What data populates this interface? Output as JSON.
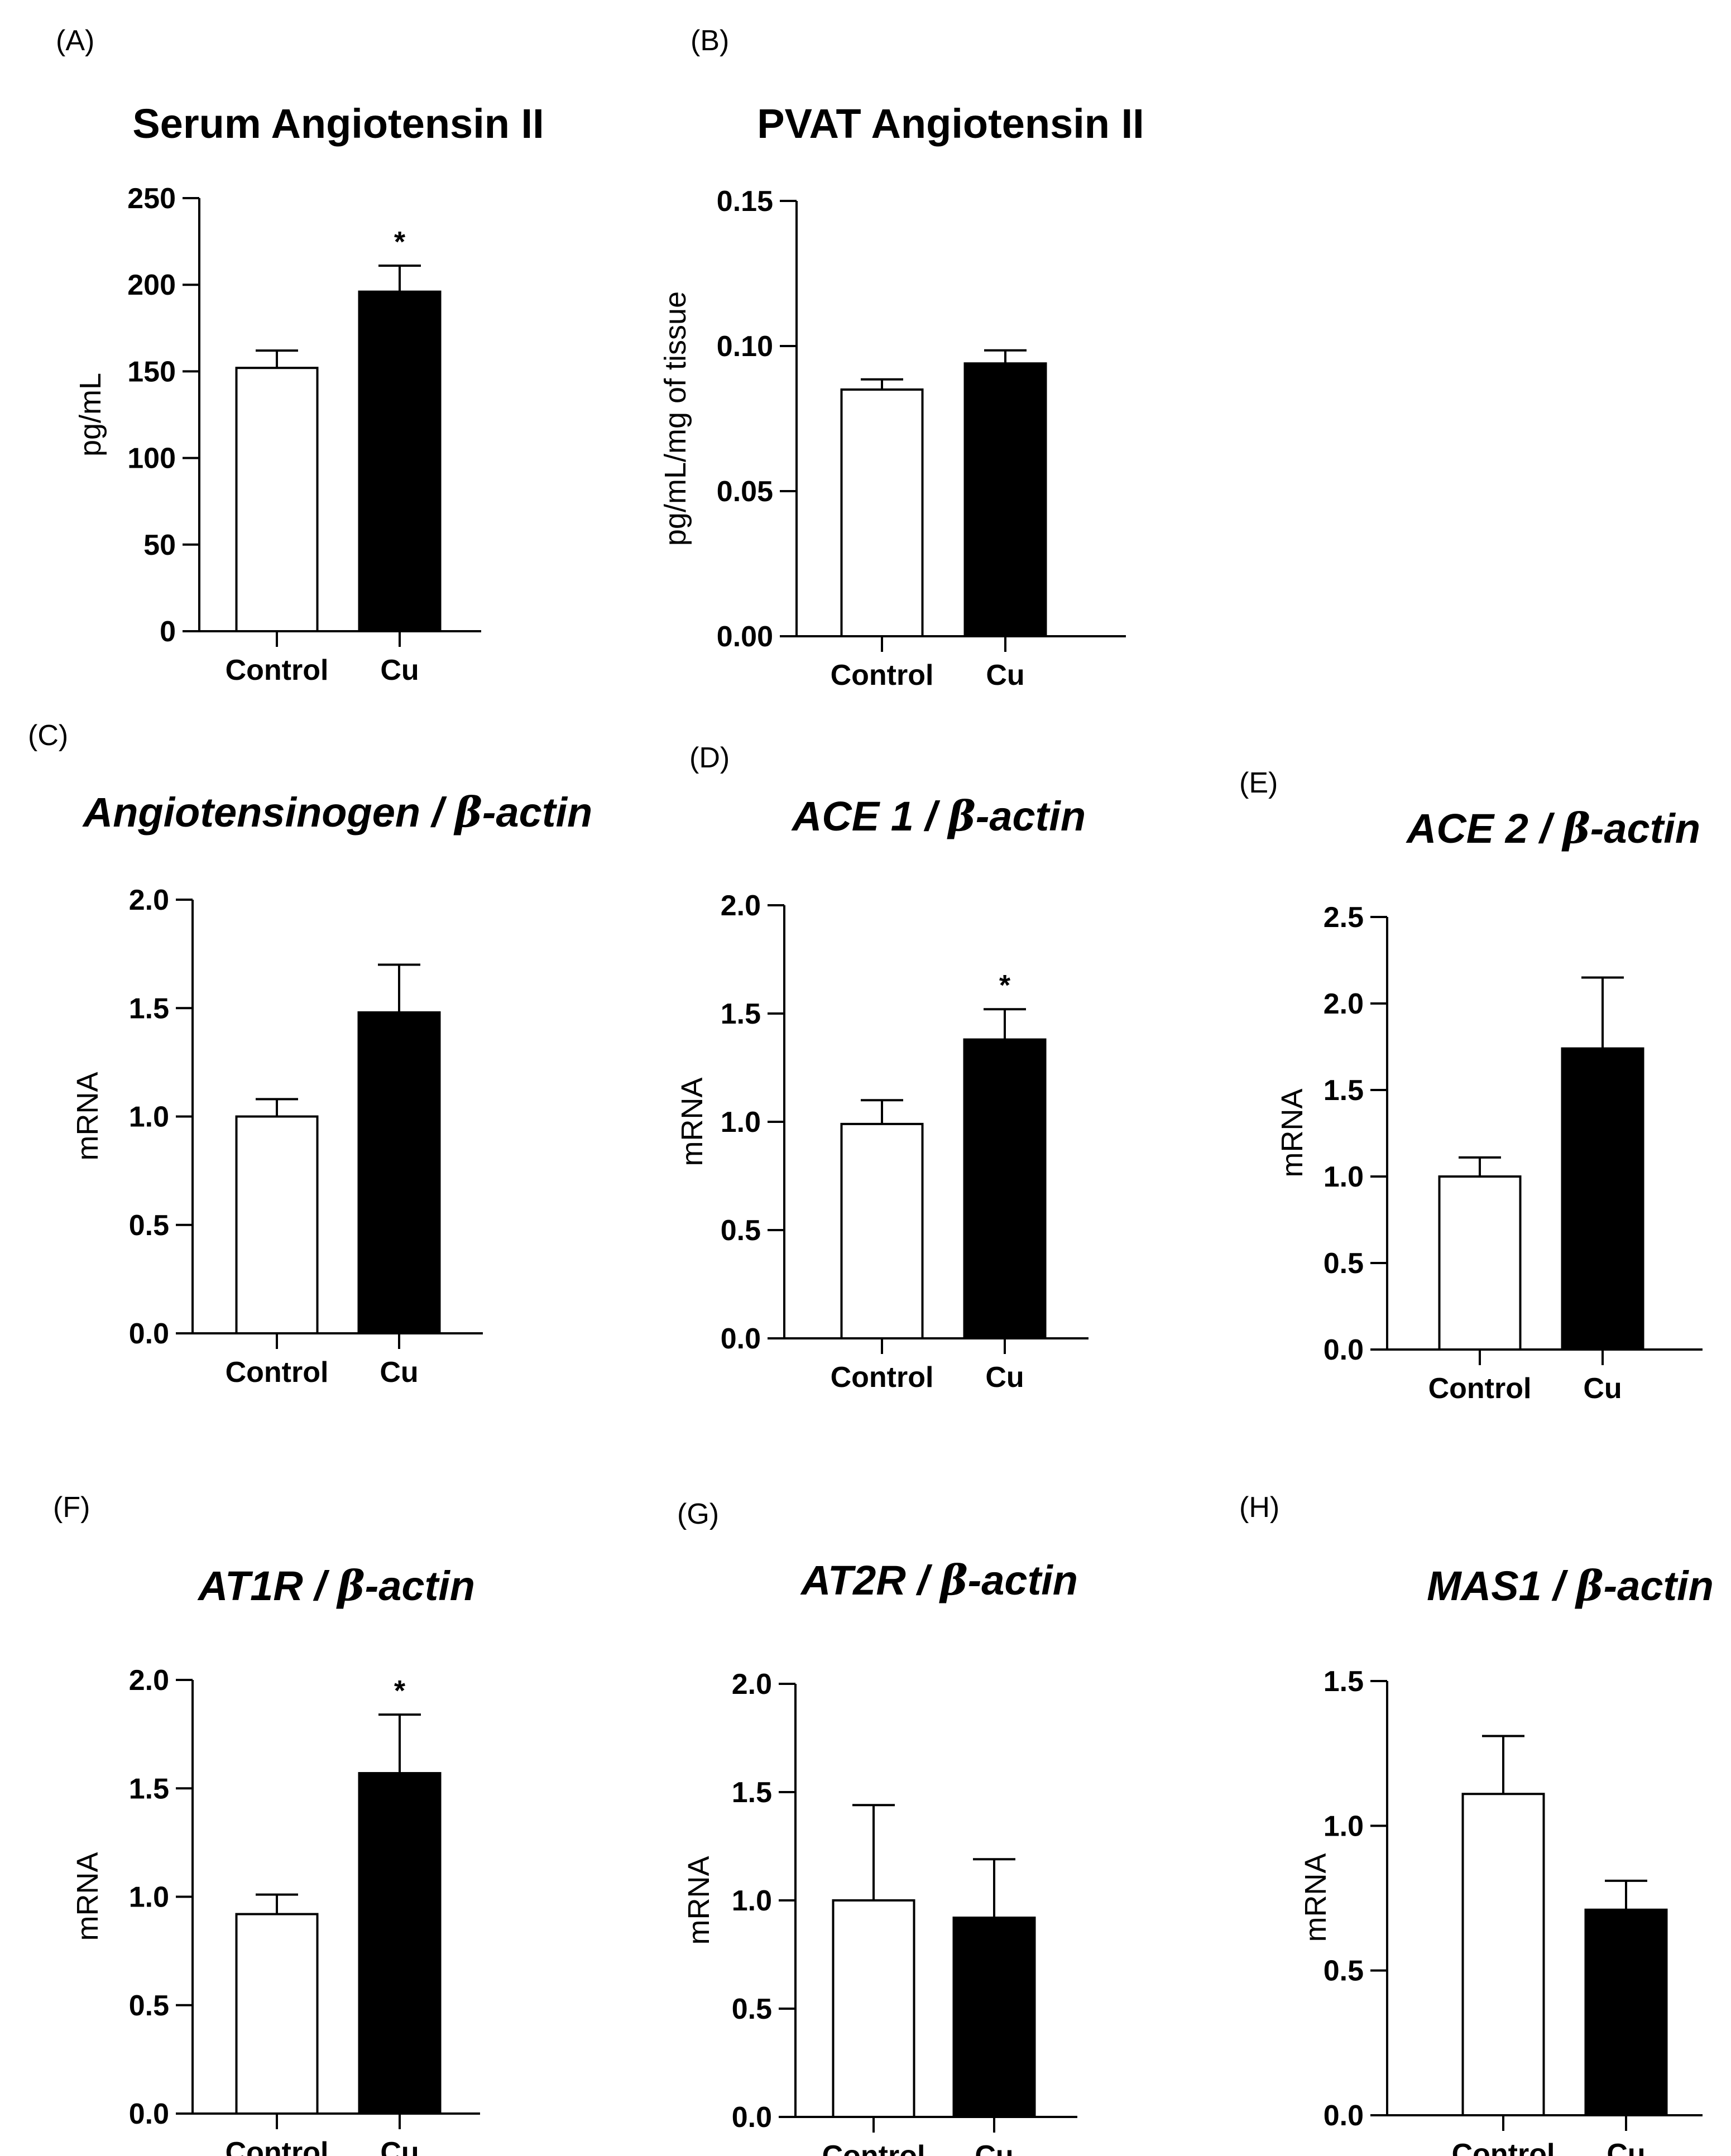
{
  "figure": {
    "background": "#ffffff",
    "colors": {
      "control_fill": "#ffffff",
      "cu_fill": "#000000",
      "stroke": "#000000"
    }
  },
  "chart_data": [
    {
      "id": "A",
      "panel_label": "(A)",
      "type": "bar",
      "title": "Serum Angiotensin II",
      "title_italic": false,
      "ylabel": "pg/mL",
      "ylim": [
        0,
        250
      ],
      "yticks": [
        0,
        50,
        100,
        150,
        200,
        250
      ],
      "ytick_labels": [
        "0",
        "50",
        "100",
        "150",
        "200",
        "250"
      ],
      "categories": [
        "Control",
        "Cu"
      ],
      "values": [
        152,
        196
      ],
      "errors": [
        10,
        15
      ],
      "significance": [
        "",
        "*"
      ]
    },
    {
      "id": "B",
      "panel_label": "(B)",
      "type": "bar",
      "title": "PVAT Angiotensin II",
      "title_italic": false,
      "ylabel": "pg/mL/mg of tissue",
      "ylim": [
        0,
        0.15
      ],
      "yticks": [
        0,
        0.05,
        0.1,
        0.15
      ],
      "ytick_labels": [
        "0.00",
        "0.05",
        "0.10",
        "0.15"
      ],
      "categories": [
        "Control",
        "Cu"
      ],
      "values": [
        0.085,
        0.094
      ],
      "errors": [
        0.0035,
        0.0045
      ],
      "significance": [
        "",
        ""
      ]
    },
    {
      "id": "C",
      "panel_label": "(C)",
      "type": "bar",
      "title": "Angiotensinogen / β-actin",
      "title_italic": true,
      "ylabel": "mRNA",
      "ylim": [
        0,
        2.0
      ],
      "yticks": [
        0,
        0.5,
        1.0,
        1.5,
        2.0
      ],
      "ytick_labels": [
        "0.0",
        "0.5",
        "1.0",
        "1.5",
        "2.0"
      ],
      "categories": [
        "Control",
        "Cu"
      ],
      "values": [
        1.0,
        1.48
      ],
      "errors": [
        0.08,
        0.22
      ],
      "significance": [
        "",
        ""
      ]
    },
    {
      "id": "D",
      "panel_label": "(D)",
      "type": "bar",
      "title": "ACE 1 / β-actin",
      "title_italic": true,
      "ylabel": "mRNA",
      "ylim": [
        0,
        2.0
      ],
      "yticks": [
        0,
        0.5,
        1.0,
        1.5,
        2.0
      ],
      "ytick_labels": [
        "0.0",
        "0.5",
        "1.0",
        "1.5",
        "2.0"
      ],
      "categories": [
        "Control",
        "Cu"
      ],
      "values": [
        0.99,
        1.38
      ],
      "errors": [
        0.11,
        0.14
      ],
      "significance": [
        "",
        "*"
      ]
    },
    {
      "id": "E",
      "panel_label": "(E)",
      "type": "bar",
      "title": "ACE 2 / β-actin",
      "title_italic": true,
      "ylabel": "mRNA",
      "ylim": [
        0,
        2.5
      ],
      "yticks": [
        0,
        0.5,
        1.0,
        1.5,
        2.0,
        2.5
      ],
      "ytick_labels": [
        "0.0",
        "0.5",
        "1.0",
        "1.5",
        "2.0",
        "2.5"
      ],
      "categories": [
        "Control",
        "Cu"
      ],
      "values": [
        1.0,
        1.74
      ],
      "errors": [
        0.11,
        0.41
      ],
      "significance": [
        "",
        ""
      ]
    },
    {
      "id": "F",
      "panel_label": "(F)",
      "type": "bar",
      "title": "AT1R / β-actin",
      "title_italic": true,
      "ylabel": "mRNA",
      "ylim": [
        0,
        2.0
      ],
      "yticks": [
        0,
        0.5,
        1.0,
        1.5,
        2.0
      ],
      "ytick_labels": [
        "0.0",
        "0.5",
        "1.0",
        "1.5",
        "2.0"
      ],
      "categories": [
        "Control",
        "Cu"
      ],
      "values": [
        0.92,
        1.57
      ],
      "errors": [
        0.09,
        0.27
      ],
      "significance": [
        "",
        "*"
      ]
    },
    {
      "id": "G",
      "panel_label": "(G)",
      "type": "bar",
      "title": "AT2R / β-actin",
      "title_italic": true,
      "ylabel": "mRNA",
      "ylim": [
        0,
        2.0
      ],
      "yticks": [
        0,
        0.5,
        1.0,
        1.5,
        2.0
      ],
      "ytick_labels": [
        "0.0",
        "0.5",
        "1.0",
        "1.5",
        "2.0"
      ],
      "categories": [
        "Control",
        "Cu"
      ],
      "values": [
        1.0,
        0.92
      ],
      "errors": [
        0.44,
        0.27
      ],
      "significance": [
        "",
        ""
      ]
    },
    {
      "id": "H",
      "panel_label": "(H)",
      "type": "bar",
      "title": "MAS1 / β-actin",
      "title_italic": true,
      "ylabel": "mRNA",
      "ylim": [
        0,
        1.5
      ],
      "yticks": [
        0,
        0.5,
        1.0,
        1.5
      ],
      "ytick_labels": [
        "0.0",
        "0.5",
        "1.0",
        "1.5"
      ],
      "categories": [
        "Control",
        "Cu"
      ],
      "values": [
        1.11,
        0.71
      ],
      "errors": [
        0.2,
        0.1
      ],
      "significance": [
        "",
        ""
      ]
    }
  ]
}
